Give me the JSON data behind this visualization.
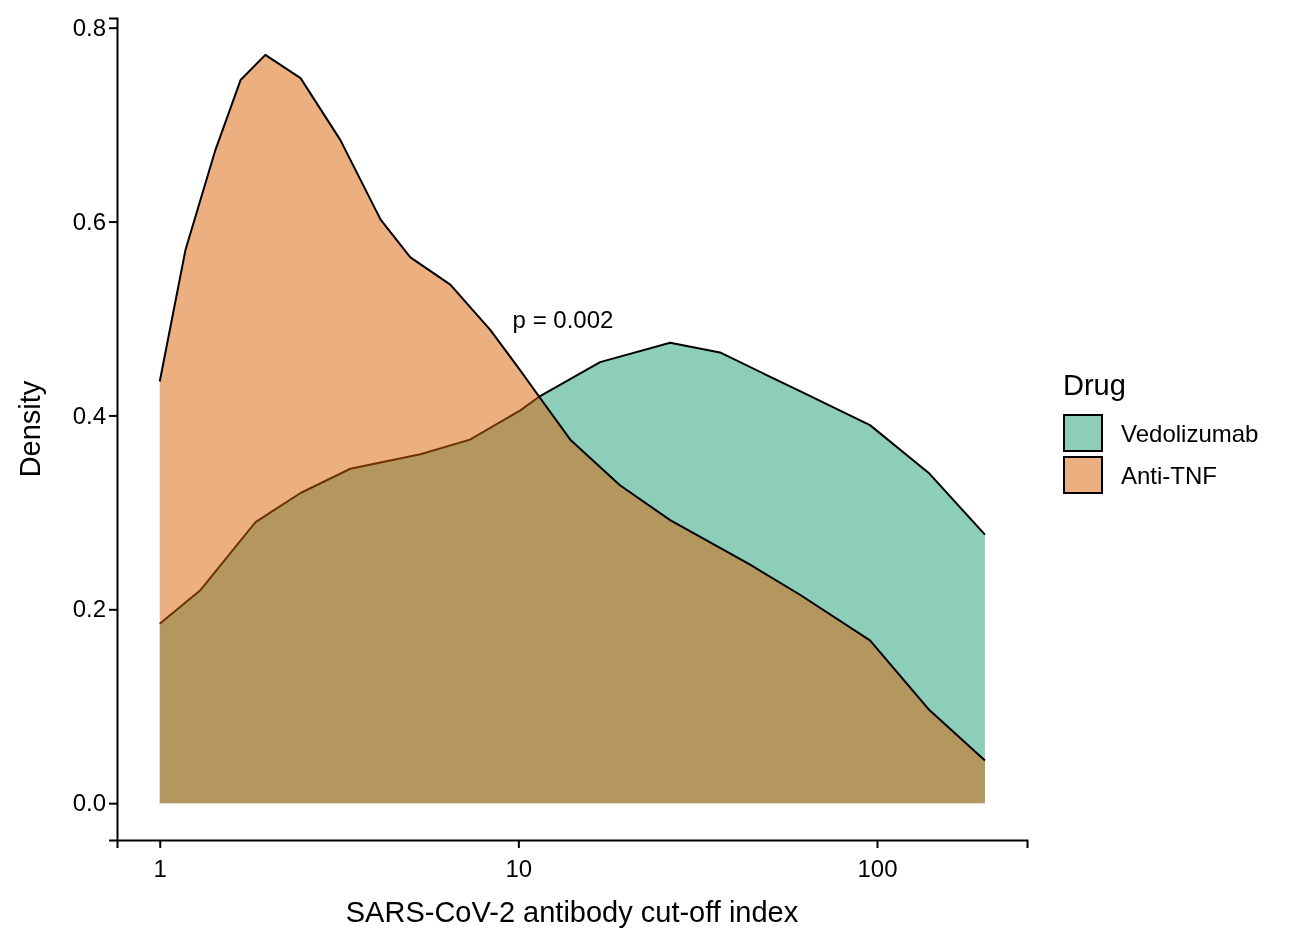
{
  "chart_data": {
    "type": "area",
    "xlabel": "SARS-CoV-2 antibody cut-off index",
    "ylabel": "Density",
    "legend_title": "Drug",
    "legend": "right",
    "log": "x",
    "grid": false,
    "xlim": [
      0.76,
      262
    ],
    "xticks": [
      1,
      10,
      100
    ],
    "ylim": [
      -0.038,
      0.81
    ],
    "yticks": [
      {
        "value": 0,
        "label": "0.0"
      },
      {
        "value": 0.2,
        "label": "0.2"
      },
      {
        "value": 0.4,
        "label": "0.4"
      },
      {
        "value": 0.6,
        "label": "0.6"
      },
      {
        "value": 0.8,
        "label": "0.8"
      }
    ],
    "annotations": [
      "p = 0.002"
    ],
    "series": [
      {
        "name": "Vedolizumab",
        "color": "#1b9e77",
        "x": [
          1,
          1.3,
          1.85,
          2.47,
          3.4,
          5.33,
          7.33,
          10.1,
          11.5,
          16.9,
          26.5,
          36.5,
          61,
          95.6,
          140,
          200
        ],
        "values": [
          0.185,
          0.22,
          0.29,
          0.32,
          0.345,
          0.36,
          0.375,
          0.405,
          0.42,
          0.455,
          0.475,
          0.465,
          0.425,
          0.39,
          0.34,
          0.277
        ]
      },
      {
        "name": "Anti-TNF",
        "color": "#d95f02",
        "x": [
          1,
          1.18,
          1.43,
          1.68,
          1.97,
          2.47,
          3.19,
          4.13,
          5.0,
          6.46,
          8.36,
          10.1,
          11.5,
          13.96,
          19.2,
          26.5,
          44.3,
          61,
          95.6,
          140,
          200
        ],
        "values": [
          0.435,
          0.571,
          0.674,
          0.746,
          0.772,
          0.748,
          0.684,
          0.602,
          0.563,
          0.535,
          0.488,
          0.447,
          0.418,
          0.375,
          0.328,
          0.292,
          0.246,
          0.215,
          0.168,
          0.096,
          0.044
        ]
      }
    ]
  }
}
